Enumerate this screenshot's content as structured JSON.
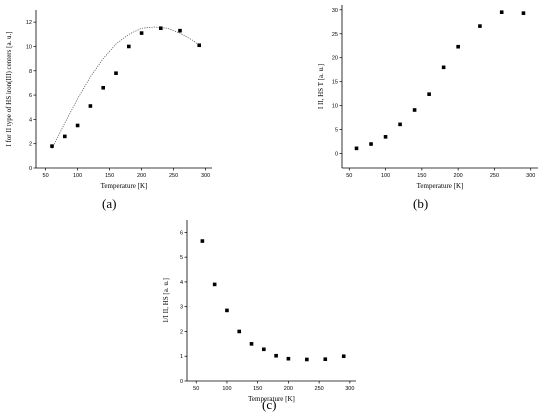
{
  "chart_data": [
    {
      "id": "a",
      "type": "scatter",
      "panel_label": "(a)",
      "xlabel": "Temperature [K]",
      "ylabel": "I for II type of HS iron(III) centers [a. u.]",
      "xlim": [
        35,
        310
      ],
      "ylim": [
        0,
        13
      ],
      "xticks": [
        50,
        100,
        150,
        200,
        250,
        300
      ],
      "yticks": [
        0,
        2,
        4,
        6,
        8,
        10,
        12
      ],
      "x": [
        60,
        80,
        100,
        120,
        140,
        160,
        180,
        200,
        230,
        260,
        290
      ],
      "y": [
        1.8,
        2.6,
        3.5,
        5.1,
        6.6,
        7.8,
        10.0,
        11.1,
        11.5,
        11.3,
        10.1
      ],
      "fit_curve": {
        "x": [
          60,
          80,
          100,
          120,
          140,
          160,
          180,
          200,
          220,
          240,
          260,
          280,
          290
        ],
        "y": [
          1.6,
          3.7,
          5.7,
          7.5,
          9.0,
          10.2,
          11.0,
          11.5,
          11.6,
          11.5,
          11.1,
          10.5,
          10.1
        ]
      }
    },
    {
      "id": "b",
      "type": "scatter",
      "panel_label": "(b)",
      "xlabel": "Temperature [K]",
      "ylabel": "I II, HS T [a. u.]",
      "xlim": [
        40,
        310
      ],
      "ylim": [
        -3,
        31
      ],
      "xticks": [
        50,
        100,
        150,
        200,
        250,
        300
      ],
      "yticks": [
        0,
        5,
        10,
        15,
        20,
        25,
        30
      ],
      "x": [
        60,
        80,
        100,
        120,
        140,
        160,
        180,
        200,
        230,
        260,
        290
      ],
      "y": [
        1.1,
        2.0,
        3.5,
        6.1,
        9.1,
        12.4,
        18.0,
        22.3,
        26.6,
        29.5,
        29.3
      ]
    },
    {
      "id": "c",
      "type": "scatter",
      "panel_label": "(c)",
      "xlabel": "Temperature [K]",
      "ylabel": "1/I II, HS [a. u.]",
      "xlim": [
        35,
        310
      ],
      "ylim": [
        0,
        6.5
      ],
      "xticks": [
        50,
        100,
        150,
        200,
        250,
        300
      ],
      "yticks": [
        0,
        1,
        2,
        3,
        4,
        5,
        6
      ],
      "x": [
        60,
        80,
        100,
        120,
        140,
        160,
        180,
        200,
        230,
        260,
        290
      ],
      "y": [
        5.65,
        3.9,
        2.85,
        2.0,
        1.5,
        1.28,
        1.02,
        0.9,
        0.87,
        0.88,
        1.0
      ]
    }
  ]
}
